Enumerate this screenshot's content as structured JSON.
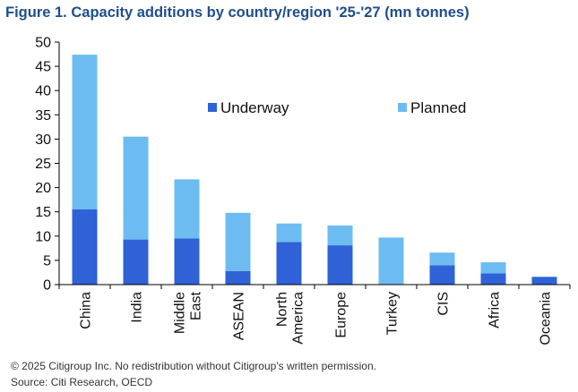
{
  "chart_data": {
    "type": "bar",
    "stacked": true,
    "title": "Figure 1. Capacity additions by country/region '25-'27 (mn tonnes)",
    "categories": [
      "China",
      "India",
      "Middle East",
      "ASEAN",
      "North America",
      "Europe",
      "Turkey",
      "CIS",
      "Africa",
      "Oceania"
    ],
    "category_lines": [
      [
        "China"
      ],
      [
        "India"
      ],
      [
        "Middle",
        "East"
      ],
      [
        "ASEAN"
      ],
      [
        "North",
        "America"
      ],
      [
        "Europe"
      ],
      [
        "Turkey"
      ],
      [
        "CIS"
      ],
      [
        "Africa"
      ],
      [
        "Oceania"
      ]
    ],
    "series": [
      {
        "name": "Underway",
        "color": "#2e62d6",
        "values": [
          15.5,
          9.3,
          9.5,
          2.8,
          8.8,
          8.1,
          0,
          4.0,
          2.3,
          1.6
        ]
      },
      {
        "name": "Planned",
        "color": "#6cbcf2",
        "values": [
          31.9,
          21.2,
          12.2,
          12.0,
          3.8,
          4.1,
          9.7,
          2.6,
          2.3,
          0
        ]
      }
    ],
    "ylim": [
      0,
      50
    ],
    "yticks": [
      0,
      5,
      10,
      15,
      20,
      25,
      30,
      35,
      40,
      45,
      50
    ],
    "xlabel": "",
    "ylabel": "",
    "legend_position": "top-center"
  },
  "footer": {
    "copyright": "© 2025 Citigroup Inc. No redistribution without Citigroup's written permission.",
    "source": "Source: Citi Research, OECD"
  }
}
